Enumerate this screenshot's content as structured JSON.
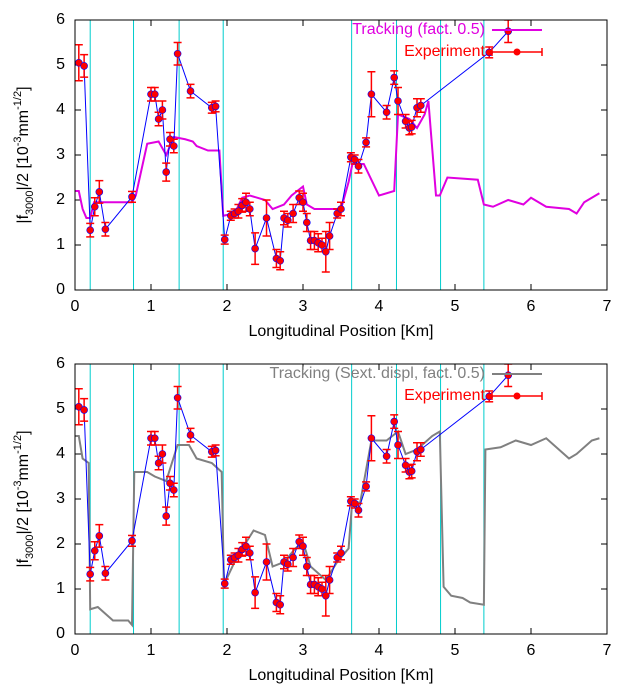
{
  "chart_data": [
    {
      "type": "line",
      "xlabel": "Longitudinal Position [Km]",
      "ylabel": [
        "|f",
        "3000",
        "|/2 [10",
        "-3",
        "mm",
        "-1/2",
        "]"
      ],
      "xlim": [
        0,
        7
      ],
      "ylim": [
        0,
        6
      ],
      "xticks": [
        0,
        1,
        2,
        3,
        4,
        5,
        6,
        7
      ],
      "yticks": [
        0,
        1,
        2,
        3,
        4,
        5,
        6
      ],
      "vlines": [
        0.2,
        0.77,
        1.37,
        1.95,
        3.64,
        4.23,
        4.81,
        5.38
      ],
      "vline_color": "#00cccc",
      "legend": "top right",
      "series": [
        {
          "name": "Tracking (fact. 0.5)",
          "color": "#e000e0",
          "x": [
            0,
            0.05,
            0.1,
            0.15,
            0.2,
            0.25,
            0.75,
            0.8,
            0.95,
            1.1,
            1.2,
            1.3,
            1.45,
            1.55,
            1.6,
            1.75,
            1.9,
            1.95,
            2.1,
            2.2,
            2.3,
            2.5,
            2.6,
            2.75,
            2.85,
            3.0,
            3.05,
            3.15,
            3.4,
            3.5,
            3.6,
            3.65,
            3.8,
            4.0,
            4.2,
            4.25,
            4.4,
            4.5,
            4.6,
            4.65,
            4.75,
            4.8,
            4.9,
            5.3,
            5.38,
            5.5,
            5.7,
            5.9,
            6.0,
            6.2,
            6.5,
            6.6,
            6.7,
            6.8,
            6.9
          ],
          "values": [
            2.2,
            2.2,
            1.8,
            1.6,
            1.6,
            1.95,
            1.95,
            2.1,
            3.25,
            3.3,
            3.0,
            3.4,
            3.35,
            3.3,
            3.2,
            3.1,
            3.1,
            1.65,
            1.7,
            2.05,
            2.1,
            2.0,
            1.8,
            1.9,
            2.1,
            2.3,
            1.9,
            1.8,
            1.8,
            1.8,
            2.4,
            2.8,
            2.8,
            2.1,
            2.2,
            3.9,
            3.8,
            3.6,
            3.9,
            4.2,
            2.1,
            2.1,
            2.5,
            2.45,
            1.9,
            1.85,
            2.0,
            1.9,
            2.05,
            1.85,
            1.8,
            1.7,
            1.95,
            2.05,
            2.15
          ]
        },
        {
          "name": "Experiment",
          "color": "#ff0000",
          "line_color": "#0000ff",
          "x": [
            0.05,
            0.12,
            0.2,
            0.26,
            0.32,
            0.4,
            0.75,
            1.0,
            1.05,
            1.1,
            1.15,
            1.2,
            1.25,
            1.3,
            1.35,
            1.52,
            1.8,
            1.85,
            1.97,
            2.05,
            2.1,
            2.15,
            2.2,
            2.25,
            2.3,
            2.37,
            2.52,
            2.65,
            2.7,
            2.75,
            2.8,
            2.87,
            2.95,
            3.0,
            3.05,
            3.1,
            3.15,
            3.2,
            3.25,
            3.3,
            3.35,
            3.45,
            3.5,
            3.63,
            3.68,
            3.73,
            3.83,
            3.9,
            4.1,
            4.2,
            4.25,
            4.35,
            4.4,
            4.43,
            4.5,
            4.55,
            5.45,
            5.7
          ],
          "values": [
            5.05,
            4.98,
            1.33,
            1.85,
            2.18,
            1.35,
            2.07,
            4.35,
            4.35,
            3.8,
            4.0,
            2.62,
            3.35,
            3.2,
            5.25,
            4.42,
            4.05,
            4.08,
            1.12,
            1.65,
            1.7,
            1.75,
            1.88,
            1.95,
            1.8,
            0.92,
            1.6,
            0.7,
            0.65,
            1.6,
            1.55,
            1.7,
            2.05,
            1.95,
            1.5,
            1.1,
            1.1,
            1.05,
            1.0,
            0.85,
            1.2,
            1.7,
            1.8,
            2.95,
            2.9,
            2.75,
            3.28,
            4.35,
            3.95,
            4.72,
            4.2,
            3.75,
            3.6,
            3.62,
            4.05,
            4.1,
            5.28,
            5.75
          ],
          "errors": [
            0.4,
            0.25,
            0.15,
            0.2,
            0.25,
            0.15,
            0.12,
            0.15,
            0.15,
            0.15,
            0.2,
            0.2,
            0.15,
            0.15,
            0.25,
            0.15,
            0.12,
            0.12,
            0.1,
            0.1,
            0.1,
            0.15,
            0.15,
            0.2,
            0.15,
            0.35,
            0.4,
            0.2,
            0.2,
            0.15,
            0.15,
            0.2,
            0.15,
            0.2,
            0.2,
            0.2,
            0.2,
            0.2,
            0.15,
            0.45,
            0.3,
            0.1,
            0.15,
            0.1,
            0.1,
            0.15,
            0.1,
            0.5,
            0.15,
            0.15,
            0.3,
            0.15,
            0.15,
            0.15,
            0.2,
            0.15,
            0.12,
            0.25
          ]
        }
      ]
    },
    {
      "type": "line",
      "xlabel": "Longitudinal Position [Km]",
      "ylabel": [
        "|f",
        "3000",
        "|/2 [10",
        "-3",
        "mm",
        "-1/2",
        "]"
      ],
      "xlim": [
        0,
        7
      ],
      "ylim": [
        0,
        6
      ],
      "xticks": [
        0,
        1,
        2,
        3,
        4,
        5,
        6,
        7
      ],
      "yticks": [
        0,
        1,
        2,
        3,
        4,
        5,
        6
      ],
      "vlines": [
        0.2,
        0.77,
        1.37,
        1.95,
        3.64,
        4.23,
        4.81,
        5.38
      ],
      "vline_color": "#00cccc",
      "legend": "top right",
      "series": [
        {
          "name": "Tracking (Sext. displ, fact. 0.5)",
          "color": "#808080",
          "x": [
            0,
            0.05,
            0.1,
            0.18,
            0.2,
            0.3,
            0.4,
            0.5,
            0.7,
            0.75,
            0.78,
            0.95,
            1.05,
            1.2,
            1.35,
            1.5,
            1.6,
            1.8,
            1.93,
            1.96,
            2.1,
            2.2,
            2.35,
            2.5,
            2.6,
            2.75,
            2.9,
            3.0,
            3.1,
            3.3,
            3.45,
            3.6,
            3.65,
            3.75,
            3.9,
            4.1,
            4.25,
            4.35,
            4.5,
            4.7,
            4.8,
            4.85,
            4.95,
            5.1,
            5.2,
            5.38,
            5.4,
            5.6,
            5.8,
            6.0,
            6.2,
            6.5,
            6.6,
            6.8,
            6.9
          ],
          "values": [
            4.4,
            4.4,
            3.9,
            3.8,
            0.55,
            0.6,
            0.45,
            0.3,
            0.3,
            0.2,
            3.6,
            3.6,
            3.5,
            3.4,
            4.2,
            4.2,
            3.9,
            3.8,
            3.6,
            1.1,
            1.6,
            1.9,
            2.3,
            2.2,
            1.5,
            1.6,
            1.9,
            2.05,
            1.5,
            1.2,
            1.6,
            1.9,
            3.0,
            2.9,
            4.3,
            4.3,
            4.5,
            4.0,
            4.1,
            4.4,
            4.5,
            1.05,
            0.85,
            0.8,
            0.7,
            0.65,
            4.1,
            4.15,
            4.3,
            4.2,
            4.35,
            3.9,
            4.0,
            4.3,
            4.35
          ]
        },
        {
          "name": "Experiment",
          "color": "#ff0000",
          "line_color": "#0000ff",
          "x": [
            0.05,
            0.12,
            0.2,
            0.26,
            0.32,
            0.4,
            0.75,
            1.0,
            1.05,
            1.1,
            1.15,
            1.2,
            1.25,
            1.3,
            1.35,
            1.52,
            1.8,
            1.85,
            1.97,
            2.05,
            2.1,
            2.15,
            2.2,
            2.25,
            2.3,
            2.37,
            2.52,
            2.65,
            2.7,
            2.75,
            2.8,
            2.87,
            2.95,
            3.0,
            3.05,
            3.1,
            3.15,
            3.2,
            3.25,
            3.3,
            3.35,
            3.45,
            3.5,
            3.63,
            3.68,
            3.73,
            3.83,
            3.9,
            4.1,
            4.2,
            4.25,
            4.35,
            4.4,
            4.43,
            4.5,
            4.55,
            5.45,
            5.7
          ],
          "values": [
            5.05,
            4.98,
            1.33,
            1.85,
            2.18,
            1.35,
            2.07,
            4.35,
            4.35,
            3.8,
            4.0,
            2.62,
            3.35,
            3.2,
            5.25,
            4.42,
            4.05,
            4.08,
            1.12,
            1.65,
            1.7,
            1.75,
            1.88,
            1.95,
            1.8,
            0.92,
            1.6,
            0.7,
            0.65,
            1.6,
            1.55,
            1.7,
            2.05,
            1.95,
            1.5,
            1.1,
            1.1,
            1.05,
            1.0,
            0.85,
            1.2,
            1.7,
            1.8,
            2.95,
            2.9,
            2.75,
            3.28,
            4.35,
            3.95,
            4.72,
            4.2,
            3.75,
            3.6,
            3.62,
            4.05,
            4.1,
            5.28,
            5.75
          ],
          "errors": [
            0.4,
            0.25,
            0.15,
            0.2,
            0.25,
            0.15,
            0.12,
            0.15,
            0.15,
            0.15,
            0.2,
            0.2,
            0.15,
            0.15,
            0.25,
            0.15,
            0.12,
            0.12,
            0.1,
            0.1,
            0.1,
            0.15,
            0.15,
            0.2,
            0.15,
            0.35,
            0.4,
            0.2,
            0.2,
            0.15,
            0.15,
            0.2,
            0.15,
            0.2,
            0.2,
            0.2,
            0.2,
            0.2,
            0.15,
            0.45,
            0.3,
            0.1,
            0.15,
            0.1,
            0.1,
            0.15,
            0.1,
            0.5,
            0.15,
            0.15,
            0.3,
            0.15,
            0.15,
            0.15,
            0.2,
            0.15,
            0.12,
            0.25
          ]
        }
      ]
    }
  ]
}
